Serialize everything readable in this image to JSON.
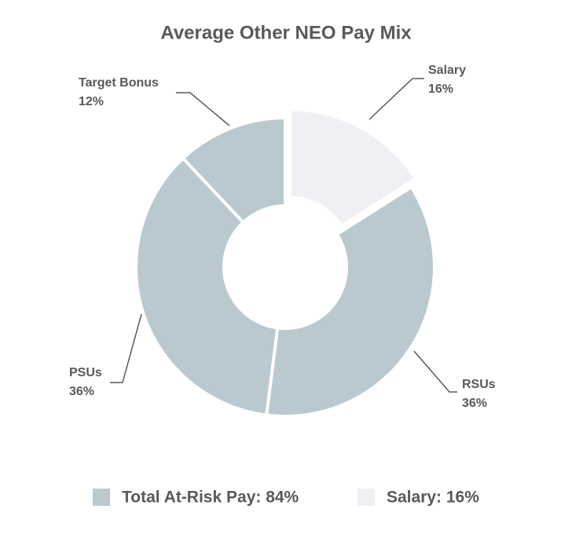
{
  "chart_data": {
    "type": "donut",
    "title": "Average Other NEO Pay Mix",
    "categories": [
      "Salary",
      "RSUs",
      "PSUs",
      "Target Bonus"
    ],
    "values": [
      16,
      36,
      36,
      12
    ],
    "value_labels": [
      "16%",
      "36%",
      "36%",
      "12%"
    ],
    "colors": [
      "#f0f0f4",
      "#b9c9cf",
      "#b9c9cf",
      "#b9c9cf"
    ],
    "legend": [
      {
        "label": "Total At-Risk Pay: 84%",
        "value": 84,
        "color": "#b9c9cf"
      },
      {
        "label": "Salary: 16%",
        "value": 16,
        "color": "#f0f0f4"
      }
    ]
  }
}
